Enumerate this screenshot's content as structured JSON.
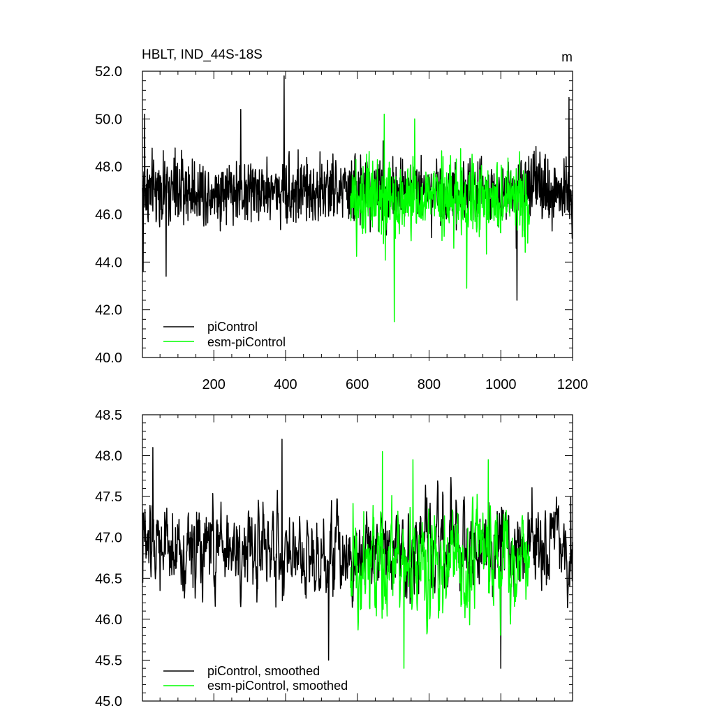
{
  "chart_data": [
    {
      "type": "line",
      "title": "HBLT, IND_44S-18S",
      "units": "m",
      "xlim": [
        1,
        1200
      ],
      "ylim": [
        40.0,
        52.0
      ],
      "xticks": [
        200,
        400,
        600,
        800,
        1000,
        1200
      ],
      "xtick_labels": [
        "200",
        "400",
        "600",
        "800",
        "1000",
        "1200"
      ],
      "yticks": [
        40,
        42,
        44,
        46,
        48,
        50,
        52
      ],
      "ytick_labels": [
        "40.0",
        "42.0",
        "44.0",
        "46.0",
        "48.0",
        "50.0",
        "52.0"
      ],
      "grid": false,
      "legend_position": "bottom-left",
      "series": [
        {
          "name": "piControl",
          "color": "#000000",
          "x_range": [
            1,
            1200
          ],
          "mean": 47.0,
          "spread": 1.0,
          "highlights": [
            [
              3,
              43.6
            ],
            [
              7,
              50.2
            ],
            [
              67,
              43.4
            ],
            [
              275,
              50.4
            ],
            [
              396,
              51.8
            ],
            [
              1045,
              42.4
            ],
            [
              1190,
              50.9
            ],
            [
              1199,
              45.0
            ]
          ]
        },
        {
          "name": "esm-piControl",
          "color": "#00ff00",
          "x_range": [
            581,
            1080
          ],
          "mean": 46.6,
          "spread": 1.15,
          "highlights": [
            [
              675,
              50.2
            ],
            [
              703,
              41.5
            ],
            [
              760,
              50.0
            ],
            [
              905,
              42.9
            ]
          ]
        }
      ]
    },
    {
      "type": "line",
      "title": "",
      "xlim": [
        1,
        1200
      ],
      "ylim": [
        45.0,
        48.5
      ],
      "yticks": [
        45.0,
        45.5,
        46.0,
        46.5,
        47.0,
        47.5,
        48.0,
        48.5
      ],
      "ytick_labels": [
        "45.0",
        "45.5",
        "46.0",
        "46.5",
        "47.0",
        "47.5",
        "48.0",
        "48.5"
      ],
      "grid": false,
      "legend_position": "bottom-left",
      "series": [
        {
          "name": "piControl, smoothed",
          "color": "#000000",
          "x_range": [
            1,
            1200
          ],
          "mean": 46.85,
          "spread": 0.42,
          "highlights": [
            [
              1,
              47.3
            ],
            [
              30,
              48.1
            ],
            [
              390,
              48.2
            ],
            [
              520,
              45.5
            ],
            [
              1000,
              45.4
            ],
            [
              1195,
              47.5
            ]
          ]
        },
        {
          "name": "esm-piControl, smoothed",
          "color": "#00ff00",
          "x_range": [
            581,
            1080
          ],
          "mean": 46.7,
          "spread": 0.5,
          "highlights": [
            [
              670,
              48.05
            ],
            [
              730,
              45.4
            ],
            [
              755,
              47.95
            ],
            [
              965,
              47.95
            ]
          ]
        }
      ]
    }
  ]
}
